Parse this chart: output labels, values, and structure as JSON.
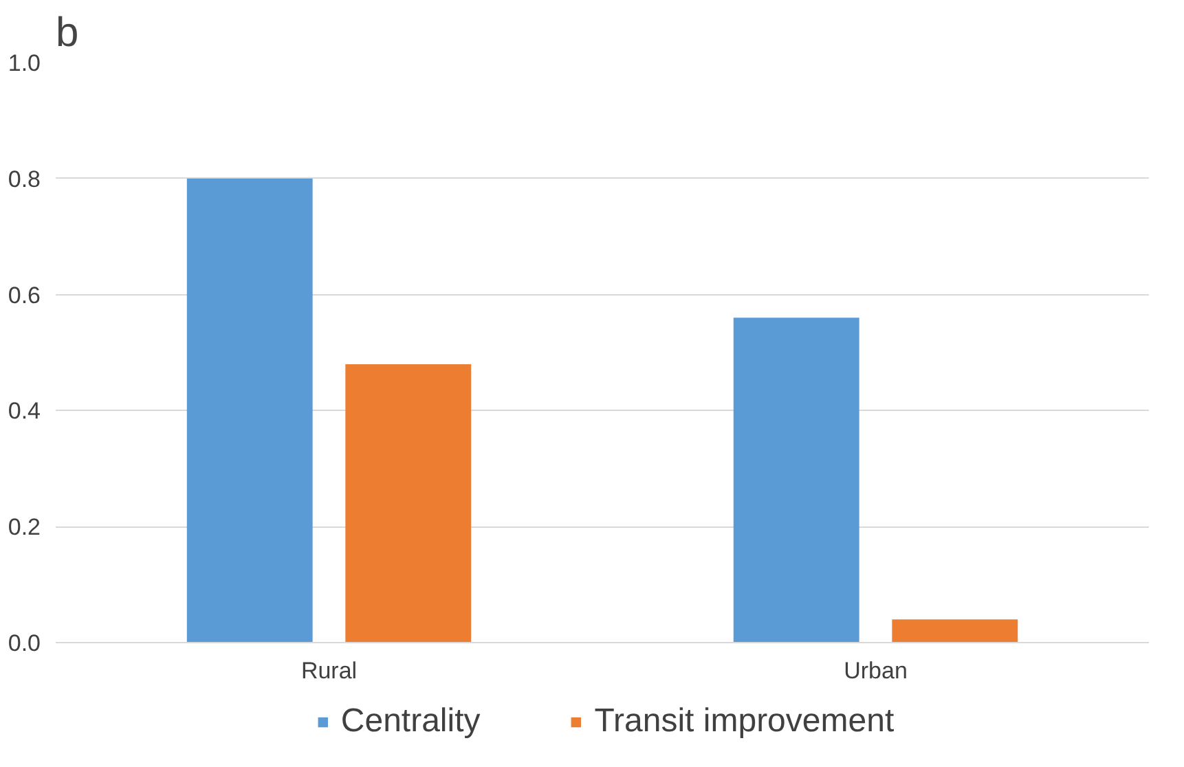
{
  "chart_data": {
    "type": "bar",
    "title": "b",
    "categories": [
      "Rural",
      "Urban"
    ],
    "series": [
      {
        "name": "Centrality",
        "color": "#5b9bd5",
        "values": [
          0.8,
          0.56
        ]
      },
      {
        "name": "Transit improvement",
        "color": "#ed7d31",
        "values": [
          0.48,
          0.04
        ]
      }
    ],
    "ylim": [
      0,
      1.0
    ],
    "yticks": [
      {
        "value": 0,
        "label": "0.0"
      },
      {
        "value": 0.2,
        "label": "0.2"
      },
      {
        "value": 0.4,
        "label": "0.4"
      },
      {
        "value": 0.6,
        "label": "0.6"
      },
      {
        "value": 0.8,
        "label": "0.8"
      },
      {
        "value": 1.0,
        "label": "1.0"
      }
    ],
    "grid": "y",
    "legend": "bottom"
  }
}
